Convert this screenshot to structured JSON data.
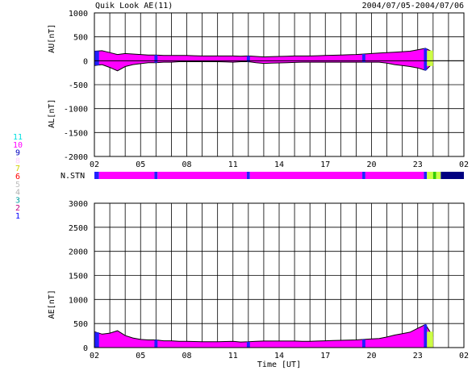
{
  "header": {
    "title": "Quik Look AE(11)",
    "date_range": "2004/07/05-2004/07/06"
  },
  "station_legend": [
    {
      "label": "11",
      "color": "#00e0e0"
    },
    {
      "label": "10",
      "color": "#ff00ff"
    },
    {
      "label": "9",
      "color": "#0000c0"
    },
    {
      "label": "8",
      "color": "#ffd0ff"
    },
    {
      "label": "7",
      "color": "#d0d000"
    },
    {
      "label": "6",
      "color": "#ff0000"
    },
    {
      "label": "5",
      "color": "#c0c0c0"
    },
    {
      "label": "4",
      "color": "#b0b0b0"
    },
    {
      "label": "3",
      "color": "#00a0a0"
    },
    {
      "label": "2",
      "color": "#c00080"
    },
    {
      "label": "1",
      "color": "#0000ff"
    }
  ],
  "colors": {
    "magenta": "#ff00ff",
    "blue": "#2020ff",
    "yellow_green": "#ccff44",
    "green": "#33cc00",
    "navy": "#000080"
  },
  "chart_data": [
    {
      "id": "au-al",
      "type": "area",
      "ylabel_upper": "AU[nT]",
      "ylabel_lower": "AL[nT]",
      "ylim": [
        -2000,
        1000
      ],
      "yticks": [
        1000,
        500,
        0,
        -500,
        -1000,
        -1500,
        -2000
      ],
      "xticks": [
        "02",
        "05",
        "08",
        "11",
        "14",
        "17",
        "20",
        "23",
        "02"
      ],
      "x_hours": [
        2,
        2.5,
        3,
        3.5,
        4,
        4.5,
        5,
        5.5,
        6,
        6.5,
        7,
        7.5,
        8,
        8.5,
        9,
        9.5,
        10,
        10.5,
        11,
        11.5,
        12,
        12.5,
        13,
        13.5,
        14,
        14.5,
        15,
        15.5,
        16,
        16.5,
        17,
        17.5,
        18,
        18.5,
        19,
        19.5,
        20,
        20.5,
        21,
        21.5,
        22,
        22.5,
        23,
        23.5,
        24,
        24.5,
        25,
        25.5,
        26
      ],
      "au": [
        200,
        210,
        170,
        130,
        150,
        140,
        130,
        120,
        120,
        110,
        110,
        110,
        110,
        105,
        100,
        100,
        100,
        100,
        100,
        95,
        100,
        90,
        80,
        85,
        90,
        95,
        100,
        100,
        100,
        105,
        110,
        115,
        120,
        125,
        130,
        140,
        150,
        160,
        170,
        180,
        190,
        200,
        230,
        260,
        180,
        null,
        null,
        null,
        null
      ],
      "al": [
        -100,
        -80,
        -140,
        -210,
        -120,
        -80,
        -60,
        -40,
        -40,
        -30,
        -30,
        -20,
        -20,
        -20,
        -20,
        -20,
        -20,
        -25,
        -30,
        -20,
        -20,
        -40,
        -55,
        -50,
        -45,
        -40,
        -35,
        -30,
        -30,
        -30,
        -30,
        -30,
        -30,
        -30,
        -30,
        -30,
        -30,
        -30,
        -50,
        -80,
        -100,
        -120,
        -150,
        -200,
        -50,
        null,
        null,
        null,
        null
      ]
    },
    {
      "id": "n-stn",
      "type": "heatmap",
      "label": "N.STN",
      "segments": [
        {
          "from": 2.0,
          "to": 2.3,
          "color": "#2020ff"
        },
        {
          "from": 2.3,
          "to": 5.9,
          "color": "#ff00ff"
        },
        {
          "from": 5.9,
          "to": 6.1,
          "color": "#2020ff"
        },
        {
          "from": 6.1,
          "to": 11.9,
          "color": "#ff00ff"
        },
        {
          "from": 11.9,
          "to": 12.1,
          "color": "#2020ff"
        },
        {
          "from": 12.1,
          "to": 19.4,
          "color": "#ff00ff"
        },
        {
          "from": 19.4,
          "to": 19.6,
          "color": "#2020ff"
        },
        {
          "from": 19.6,
          "to": 23.4,
          "color": "#ff00ff"
        },
        {
          "from": 23.4,
          "to": 23.6,
          "color": "#2020ff"
        },
        {
          "from": 23.6,
          "to": 24.0,
          "color": "#ccff44"
        },
        {
          "from": 24.0,
          "to": 24.2,
          "color": "#33cc00"
        },
        {
          "from": 24.2,
          "to": 24.5,
          "color": "#ccff44"
        },
        {
          "from": 24.5,
          "to": 26.0,
          "color": "#000080"
        }
      ]
    },
    {
      "id": "ae",
      "type": "area",
      "ylabel": "AE[nT]",
      "ylim": [
        0,
        3000
      ],
      "yticks": [
        3000,
        2500,
        2000,
        1500,
        1000,
        500,
        0
      ],
      "xticks": [
        "02",
        "05",
        "08",
        "11",
        "14",
        "17",
        "20",
        "23",
        "02"
      ],
      "xlabel": "Time [UT]",
      "x_hours": [
        2,
        2.5,
        3,
        3.5,
        4,
        4.5,
        5,
        5.5,
        6,
        6.5,
        7,
        7.5,
        8,
        8.5,
        9,
        9.5,
        10,
        10.5,
        11,
        11.5,
        12,
        12.5,
        13,
        13.5,
        14,
        14.5,
        15,
        15.5,
        16,
        16.5,
        17,
        17.5,
        18,
        18.5,
        19,
        19.5,
        20,
        20.5,
        21,
        21.5,
        22,
        22.5,
        23,
        23.5,
        24,
        24.5,
        25,
        25.5,
        26
      ],
      "values": [
        330,
        280,
        300,
        350,
        250,
        200,
        170,
        160,
        160,
        140,
        140,
        130,
        130,
        125,
        120,
        120,
        120,
        125,
        130,
        115,
        120,
        130,
        135,
        135,
        135,
        135,
        135,
        130,
        130,
        135,
        140,
        145,
        150,
        155,
        160,
        170,
        180,
        190,
        220,
        260,
        290,
        320,
        400,
        480,
        230,
        null,
        null,
        null,
        null
      ]
    }
  ]
}
